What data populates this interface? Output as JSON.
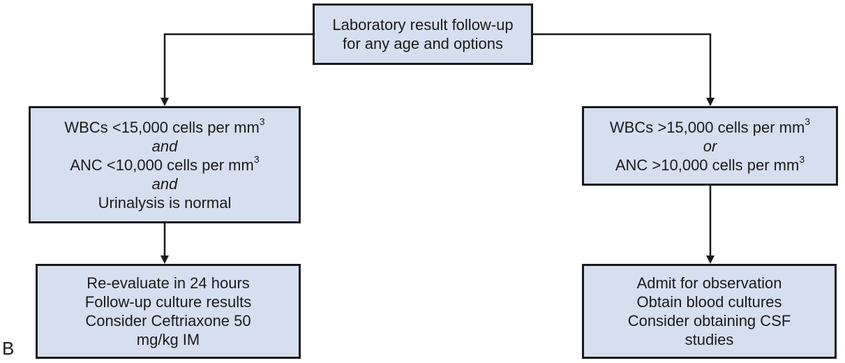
{
  "panel_label": "B",
  "nodes": {
    "top": {
      "lines": [
        "Laboratory result follow-up",
        "for any age and options"
      ]
    },
    "left_mid": {
      "line1": "WBCs <15,000 cells per mm",
      "sup1": "3",
      "conj1": "and",
      "line2": "ANC <10,000 cells per mm",
      "sup2": "3",
      "conj2": "and",
      "line3": "Urinalysis is normal"
    },
    "right_mid": {
      "line1": "WBCs >15,000 cells per mm",
      "sup1": "3",
      "conj1": "or",
      "line2": "ANC >10,000 cells per mm",
      "sup2": "3"
    },
    "left_bot": {
      "lines": [
        "Re-evaluate in 24 hours",
        "Follow-up culture results",
        "Consider Ceftriaxone 50",
        "mg/kg IM"
      ]
    },
    "right_bot": {
      "lines": [
        "Admit for observation",
        "Obtain blood cultures",
        "Consider obtaining CSF",
        "studies"
      ]
    }
  },
  "colors": {
    "box_fill": "#d6dff0",
    "stroke": "#1a1a1a"
  }
}
